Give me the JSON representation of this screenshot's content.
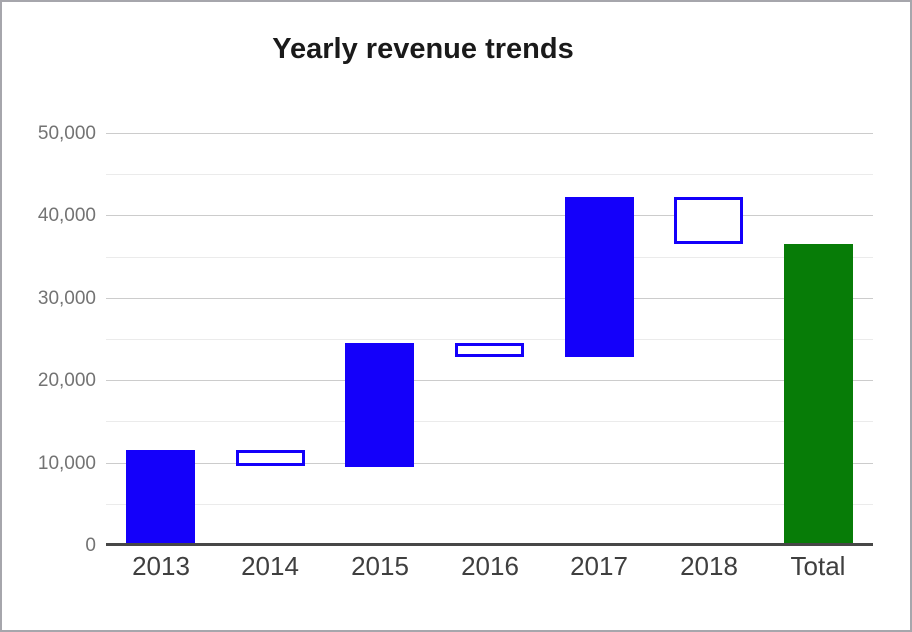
{
  "page": {
    "background": "#ffffff",
    "border_color": "#a6a6ac"
  },
  "chart_data": {
    "type": "waterfall",
    "title": "Yearly revenue trends",
    "categories": [
      "2013",
      "2014",
      "2015",
      "2016",
      "2017",
      "2018",
      "Total"
    ],
    "bars": [
      {
        "label": "2013",
        "kind": "increase",
        "start": 0,
        "end": 11500
      },
      {
        "label": "2014",
        "kind": "decrease",
        "start": 11500,
        "end": 9500
      },
      {
        "label": "2015",
        "kind": "increase",
        "start": 9500,
        "end": 24500
      },
      {
        "label": "2016",
        "kind": "decrease",
        "start": 24500,
        "end": 22800
      },
      {
        "label": "2017",
        "kind": "increase",
        "start": 22800,
        "end": 42200
      },
      {
        "label": "2018",
        "kind": "decrease",
        "start": 42200,
        "end": 36500
      },
      {
        "label": "Total",
        "kind": "total",
        "start": 0,
        "end": 36500
      }
    ],
    "y_axis": {
      "min": 0,
      "max": 50000,
      "major_step": 10000,
      "minor_step": 5000,
      "tick_labels": [
        "0",
        "10,000",
        "20,000",
        "30,000",
        "40,000",
        "50,000"
      ]
    },
    "colors": {
      "increase_fill": "#1400fa",
      "decrease_outline": "#1400fa",
      "decrease_fill": "#ffffff",
      "total_fill": "#077c07",
      "grid_major": "#cccccc",
      "grid_minor": "#ebebeb",
      "baseline": "#474747",
      "y_label": "#737373",
      "x_label": "#3f3f3f",
      "title": "#1a1a1a"
    },
    "grid": {
      "visible": true
    },
    "legend": "none"
  }
}
